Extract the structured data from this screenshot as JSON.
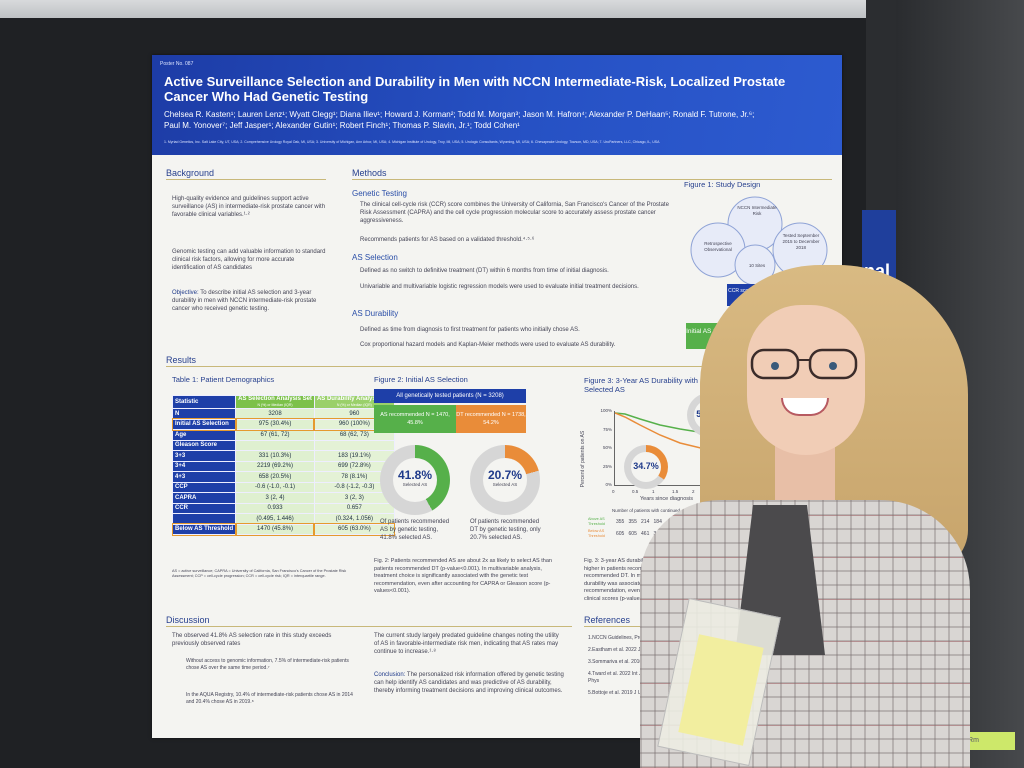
{
  "poster": {
    "number": "Poster No. 087",
    "title": "Active Surveillance Selection and Durability in Men with NCCN Intermediate-Risk, Localized Prostate Cancer Who Had Genetic Testing",
    "authors_line1": "Chelsea R. Kasten¹; Lauren Lenz¹; Wyatt Clegg¹; Diana Iliev¹; Howard J. Korman²; Todd M. Morgan³; Jason M. Hafron⁴; Alexander P. DeHaan⁵; Ronald F. Tutrone, Jr.⁶;",
    "authors_line2": "Paul M. Yonover⁷; Jeff Jasper¹; Alexander Gutin¹; Robert Finch¹; Thomas P. Slavin, Jr.¹; Todd Cohen¹",
    "affiliations": "1. Myriad Genetics, Inc. Salt Lake City, UT, USA; 2. Comprehensive Urology Royal Oak, MI, USA; 3. University of Michigan, Ann Arbor, MI, USA; 4. Michigan Institute of Urology, Troy, MI, USA; 5. Urologic Consultants, Wyoming, MI, USA; 6. Chesapeake Urology, Towson, MD, USA; 7. UroPartners, LLC, Chicago, IL, USA"
  },
  "background": {
    "heading": "Background",
    "bullet1": "High-quality evidence and guidelines support active surveillance (AS) in intermediate-risk prostate cancer with favorable clinical variables.¹·²",
    "bullet2": "Genomic testing can add valuable information to standard clinical risk factors, allowing for more accurate identification of AS candidates",
    "objective_label": "Objective:",
    "objective": "To describe initial AS selection and 3-year durability in men with NCCN intermediate-risk prostate cancer who received genetic testing."
  },
  "methods": {
    "heading": "Methods",
    "genetic_testing": "Genetic Testing",
    "gt1": "The clinical cell-cycle risk (CCR) score combines the University of California, San Francisco's Cancer of the Prostate Risk Assessment (CAPRA) and the cell cycle progression molecular score to accurately assess prostate cancer aggressiveness.",
    "gt2": "Recommends patients for AS based on a validated threshold.⁴·⁵·⁶",
    "as_selection": "AS Selection",
    "as1": "Defined as no switch to definitive treatment (DT) within 6 months from time of initial diagnosis.",
    "as2": "Univariable and multivariable logistic regression models were used to evaluate initial treatment decisions.",
    "as_durability": "AS Durability",
    "ad1": "Defined as time from diagnosis to first treatment for patients who initially chose AS.",
    "ad2": "Cox proportional hazard models and Kaplan-Meier methods were used to evaluate AS durability."
  },
  "figure1": {
    "title": "Figure 1: Study Design",
    "circle_top": "NCCN Intermediate Risk",
    "circle_left": "Retrospective Observational",
    "circle_right": "Tested September 2015 to December 2018",
    "circle_bottom": "10 Sites",
    "ccr_box": "CCR score AS Threshold",
    "initial_as": "Initial AS Selection"
  },
  "results": {
    "heading": "Results",
    "table_title": "Table  1: Patient Demographics",
    "col_stat": "Statistic",
    "col1": "AS Selection Analysis Set",
    "col1_sub": "N (%) or Median (IQR)",
    "col2": "AS Durability Analysis Set",
    "col2_sub": "N (%) or Median (IQR)",
    "rows": [
      {
        "label": "N",
        "v1": "3208",
        "v2": "960"
      },
      {
        "label": "Initial AS Selection",
        "v1": "975 (30.4%)",
        "v2": "960 (100%)"
      },
      {
        "label": "Age",
        "v1": "67 (61, 72)",
        "v2": "68 (62, 73)"
      },
      {
        "label": "Gleason Score",
        "v1": "",
        "v2": ""
      },
      {
        "label": "3+3",
        "v1": "331 (10.3%)",
        "v2": "183 (19.1%)"
      },
      {
        "label": "3+4",
        "v1": "2219 (69.2%)",
        "v2": "699 (72.8%)"
      },
      {
        "label": "4+3",
        "v1": "658 (20.5%)",
        "v2": "78 (8.1%)"
      },
      {
        "label": "CCP",
        "v1": "-0.6 (-1.0, -0.1)",
        "v2": "-0.8 (-1.2, -0.3)"
      },
      {
        "label": "CAPRA",
        "v1": "3 (2, 4)",
        "v2": "3 (2, 3)"
      },
      {
        "label": "CCR",
        "v1": "0.933",
        "v2": "0.657"
      },
      {
        "label": "",
        "v1": "(0.495, 1.446)",
        "v2": "(0.324, 1.056)"
      },
      {
        "label": "Below AS Threshold",
        "v1": "1470 (45.8%)",
        "v2": "605 (63.0%)"
      }
    ],
    "table_note": "AS = active surveillance; CAPRA = University of California, San Francisco's Cancer of the Prostate Risk Assessment; CCP = cell-cycle progression; CCR = cell-cycle risk; IQR = interquartile range."
  },
  "figure2": {
    "title": "Figure 2: Initial AS Selection",
    "top": "All genetically tested patients (N = 3208)",
    "green_box": "AS recommended N = 1470, 45.8%",
    "orange_box": "DT recommended N = 1738, 54.2%",
    "donut1_value": "41.8%",
    "donut1_label": "Selected AS",
    "donut2_value": "20.7%",
    "donut2_label": "Selected AS",
    "note1": "Of patients recommended AS by genetic testing, 41.8% selected AS.",
    "note2": "Of patients recommended DT by genetic testing, only 20.7% selected AS.",
    "caption": "Fig. 2: Patients recommended AS are about 2x as likely to select AS than patients recommended DT (p-value<0.001). In multivariable analysis, treatment choice is significantly associated with the genetic test recommendation, even after accounting for CAPRA or Gleason score (p-values<0.001)."
  },
  "figure3": {
    "title": "Figure 3: 3-Year AS Durability with Patients Selected AS",
    "ylabel": "Percent of patients on AS",
    "yticks": [
      "100%",
      "75%",
      "50%",
      "25%",
      "0%"
    ],
    "xticks": [
      "0",
      "0.5",
      "1",
      "1.5",
      "2"
    ],
    "xlabel": "Years since diagnosis",
    "value_top": "52.4%",
    "value_bottom": "34.7%",
    "risk_title": "Number of patients with continued",
    "risk_row1_label": "Above AS Threshold",
    "risk_row1": "355   355   214   184",
    "risk_row2_label": "Below AS Threshold",
    "risk_row2": "605   605   461   361",
    "caption": "Fig. 3: 3-year AS durability was significantly higher in patients recommended AS than those recommended DT. In multivariable analysis, AS durability was associated with the genetic test recommendation, even after accounting for clinical scores (p-values<0.001)."
  },
  "discussion": {
    "heading": "Discussion",
    "d1": "The observed 41.8% AS selection rate in this study exceeds previously observed rates",
    "d2": "Without access to genomic information, 7.5% of intermediate-risk patients chose AS over the same time period.⁷",
    "d3": "In the AQUA Registry, 10.4% of intermediate-risk patients chose AS in 2014 and 20.4% chose AS in 2019.⁸",
    "d4": "The current study largely predated guideline changes noting the utility of AS in favorable-intermediate risk men, indicating that AS rates may continue to increase.¹·⁸",
    "conclusion_label": "Conclusion:",
    "conclusion": "The personalized risk information offered by genetic testing can help identify AS candidates and was predictive of AS durability, thereby informing treatment decisions and improving clinical outcomes."
  },
  "references": {
    "heading": "References",
    "r1": "1.NCCN Guidelines, Prostate Cancer",
    "r2": "2.Eastham et al. 2022 J Urol",
    "r3": "3.Sommariva et al. 2016 Eur Urol",
    "r4": "4.Tward et al. 2022 Int J Radiat Oncol Biol Phys",
    "r5": "5.Bottoje et al. 2019 J Urol"
  },
  "scene": {
    "right_sign": "nal Pro",
    "tape_text": "Poster Session Rm"
  },
  "colors": {
    "header_blue": "#2651c4",
    "green": "#56b04a",
    "orange": "#e98c39",
    "navy": "#1e3fa8"
  }
}
